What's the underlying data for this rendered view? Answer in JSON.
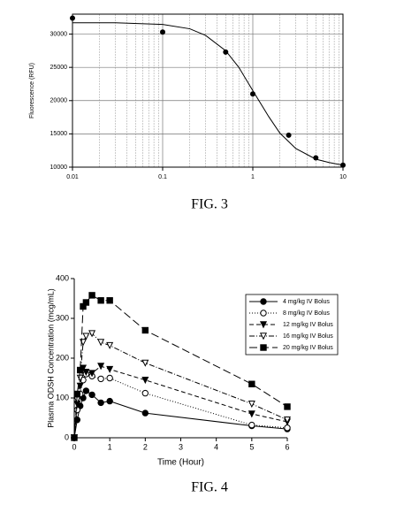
{
  "chart_data": [
    {
      "type": "scatter",
      "ylabel": "Fluorescence (RFU)",
      "caption": "FIG. 3",
      "xscale": "log",
      "xlim": [
        0.01,
        10
      ],
      "ylim": [
        10000,
        33000
      ],
      "xticks": [
        0.01,
        0.1,
        1,
        10
      ],
      "xminorticks": [
        0.02,
        0.03,
        0.04,
        0.05,
        0.06,
        0.07,
        0.08,
        0.09,
        0.2,
        0.3,
        0.4,
        0.5,
        0.6,
        0.7,
        0.8,
        0.9,
        2,
        3,
        4,
        5,
        6,
        7,
        8,
        9
      ],
      "yticks": [
        10000,
        15000,
        20000,
        25000,
        30000
      ],
      "grid": true,
      "color": "#000000",
      "x": [
        0.01,
        0.1,
        0.5,
        1,
        2.5,
        5,
        10
      ],
      "values": [
        32400,
        30300,
        27300,
        21000,
        14800,
        11400,
        10300
      ],
      "fit": {
        "x": [
          0.01,
          0.03,
          0.1,
          0.2,
          0.3,
          0.5,
          0.7,
          1,
          1.5,
          2,
          3,
          5,
          7,
          10
        ],
        "values": [
          31700,
          31700,
          31450,
          30800,
          29800,
          27500,
          25000,
          21500,
          17600,
          15100,
          12800,
          11200,
          10700,
          10300
        ]
      }
    },
    {
      "type": "line",
      "xlabel": "Time (Hour)",
      "ylabel": "Plasma ODSH Concentration (mcg/mL)",
      "caption": "FIG. 4",
      "xlim": [
        0,
        6
      ],
      "ylim": [
        0,
        400
      ],
      "xticks": [
        0,
        1,
        2,
        3,
        4,
        5,
        6
      ],
      "yticks": [
        0,
        100,
        200,
        300,
        400
      ],
      "legend": "top-right",
      "x": [
        0,
        0.083,
        0.167,
        0.25,
        0.333,
        0.5,
        0.75,
        1,
        2,
        5,
        6
      ],
      "series": [
        {
          "name": "4 mg/kg IV Bolus",
          "color": "#000000",
          "marker": "circle",
          "filled": true,
          "dash": "",
          "values": [
            0,
            45,
            80,
            100,
            118,
            108,
            88,
            92,
            62,
            30,
            22
          ]
        },
        {
          "name": "8 mg/kg IV Bolus",
          "color": "#000000",
          "marker": "circle",
          "filled": false,
          "dash": "1 2",
          "values": [
            0,
            70,
            110,
            145,
            160,
            155,
            148,
            150,
            112,
            32,
            25
          ]
        },
        {
          "name": "12 mg/kg IV Bolus",
          "color": "#000000",
          "marker": "triangle",
          "filled": true,
          "dash": "5 3",
          "values": [
            0,
            85,
            130,
            175,
            165,
            162,
            180,
            172,
            145,
            60,
            40
          ]
        },
        {
          "name": "16 mg/kg IV Bolus",
          "color": "#000000",
          "marker": "triangle",
          "filled": false,
          "dash": "6 2 1 2",
          "values": [
            0,
            95,
            150,
            240,
            255,
            262,
            240,
            232,
            188,
            85,
            45
          ]
        },
        {
          "name": "20 mg/kg IV Bolus",
          "color": "#000000",
          "marker": "square",
          "filled": true,
          "dash": "9 4",
          "values": [
            0,
            110,
            170,
            330,
            340,
            358,
            345,
            345,
            270,
            135,
            78
          ]
        }
      ]
    }
  ]
}
